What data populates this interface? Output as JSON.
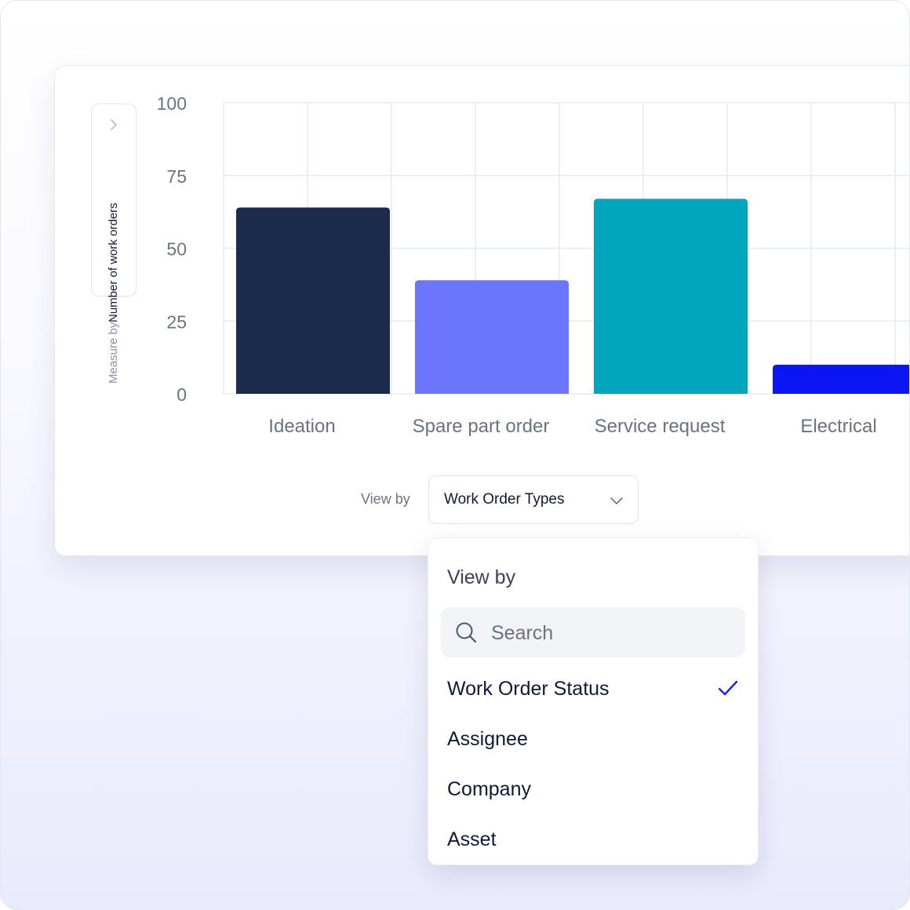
{
  "chart_data": {
    "type": "bar",
    "categories": [
      "Ideation",
      "Spare part order",
      "Service request",
      "Electrical"
    ],
    "values": [
      64,
      39,
      67,
      10
    ],
    "colors": [
      "#1a2b4b",
      "#6b76fd",
      "#00a6bd",
      "#0c16f2"
    ],
    "yticks": [
      "100",
      "75",
      "50",
      "25",
      "0"
    ],
    "ylim": [
      0,
      100
    ],
    "grid": true
  },
  "measure": {
    "label": "Measure by",
    "value": "Number of work orders"
  },
  "view_by": {
    "label": "View by",
    "selected": "Work Order Types"
  },
  "dropdown": {
    "title": "View by",
    "search_placeholder": "Search",
    "items": [
      "Work Order Status",
      "Assignee",
      "Company",
      "Asset"
    ],
    "checked_item": "Work Order Status",
    "check_color": "#1424e8"
  }
}
